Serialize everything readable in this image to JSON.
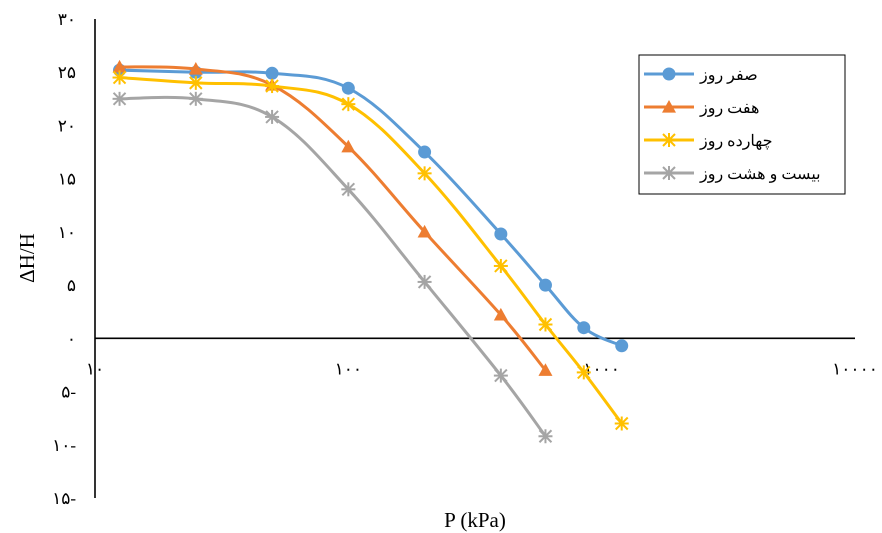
{
  "chart_data": {
    "type": "line",
    "xlabel": "P (kPa)",
    "ylabel": "ΔH/H",
    "x_scale": "log",
    "xlim": [
      10,
      10000
    ],
    "ylim": [
      -15,
      30
    ],
    "x_tick_labels": [
      "۱۰",
      "۱۰۰",
      "۱۰۰۰",
      "۱۰۰۰۰"
    ],
    "y_tick_labels": [
      "۳۰",
      "۲۵",
      "۲۰",
      "۱۵",
      "۱۰",
      "۵",
      "۰",
      "۵-",
      "۱۰-",
      "۱۵-"
    ],
    "legend_position": "top-right",
    "grid": false,
    "series": [
      {
        "name": "صفر روز",
        "color": "#5B9BD5",
        "marker": "circle",
        "points": [
          [
            12.5,
            25.2
          ],
          [
            25,
            25
          ],
          [
            50,
            24.9
          ],
          [
            100,
            23.5
          ],
          [
            200,
            17.5
          ],
          [
            400,
            9.8
          ],
          [
            600,
            5
          ],
          [
            850,
            1
          ],
          [
            1200,
            -0.7
          ]
        ]
      },
      {
        "name": "هفت روز",
        "color": "#ED7D31",
        "marker": "triangle",
        "points": [
          [
            12.5,
            25.5
          ],
          [
            25,
            25.3
          ],
          [
            50,
            23.8
          ],
          [
            100,
            18
          ],
          [
            200,
            10
          ],
          [
            400,
            2.2
          ],
          [
            600,
            -3
          ]
        ]
      },
      {
        "name": "چهارده روز",
        "color": "#FFC000",
        "marker": "star",
        "points": [
          [
            12.5,
            24.5
          ],
          [
            25,
            24
          ],
          [
            50,
            23.7
          ],
          [
            100,
            22
          ],
          [
            200,
            15.5
          ],
          [
            400,
            6.8
          ],
          [
            600,
            1.3
          ],
          [
            850,
            -3.2
          ],
          [
            1200,
            -8
          ]
        ]
      },
      {
        "name": "بیست و هشت روز",
        "color": "#A5A5A5",
        "marker": "star",
        "points": [
          [
            12.5,
            22.5
          ],
          [
            25,
            22.5
          ],
          [
            50,
            20.8
          ],
          [
            100,
            14
          ],
          [
            200,
            5.3
          ],
          [
            400,
            -3.5
          ],
          [
            600,
            -9.2
          ]
        ]
      }
    ]
  }
}
